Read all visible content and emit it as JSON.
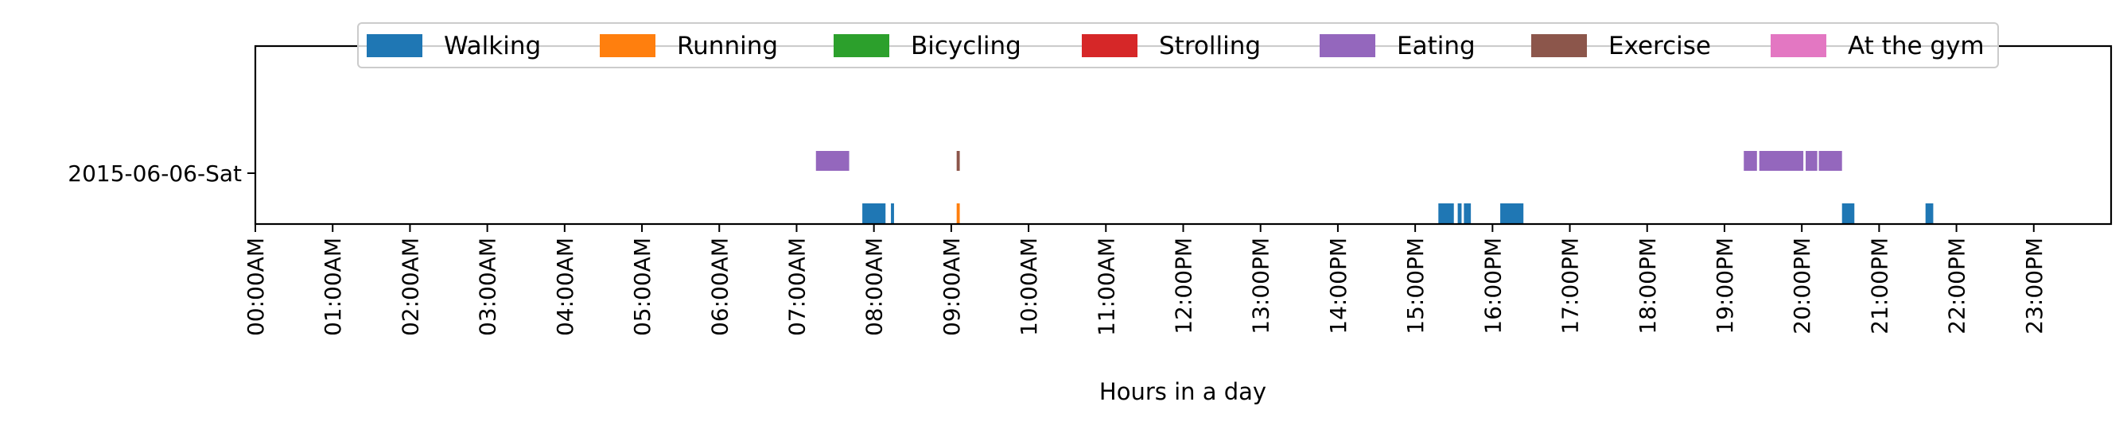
{
  "chart_data": {
    "type": "timeline",
    "title": "",
    "xlabel": "Hours in a day",
    "ylabel": "",
    "xlim": [
      0,
      24
    ],
    "x_unit": "hours",
    "x_tick_labels": [
      "00:00AM",
      "01:00AM",
      "02:00AM",
      "03:00AM",
      "04:00AM",
      "05:00AM",
      "06:00AM",
      "07:00AM",
      "08:00AM",
      "09:00AM",
      "10:00AM",
      "11:00AM",
      "12:00PM",
      "13:00PM",
      "14:00PM",
      "15:00PM",
      "16:00PM",
      "17:00PM",
      "18:00PM",
      "19:00PM",
      "20:00PM",
      "21:00PM",
      "22:00PM",
      "23:00PM"
    ],
    "categories": [
      "2015-06-06-Sat"
    ],
    "grid": false,
    "legend_position": "top-center",
    "series": [
      {
        "name": "Walking",
        "color": "#1f77b4",
        "lane": "lower",
        "intervals": [
          [
            7.85,
            8.15
          ],
          [
            8.22,
            8.26
          ],
          [
            15.3,
            15.5
          ],
          [
            15.55,
            15.6
          ],
          [
            15.63,
            15.72
          ],
          [
            16.1,
            16.4
          ],
          [
            20.52,
            20.68
          ],
          [
            21.6,
            21.7
          ]
        ]
      },
      {
        "name": "Running",
        "color": "#ff7f0e",
        "lane": "lower",
        "intervals": [
          [
            9.07,
            9.11
          ]
        ]
      },
      {
        "name": "Bicycling",
        "color": "#2ca02c",
        "lane": "lower",
        "intervals": []
      },
      {
        "name": "Strolling",
        "color": "#d62728",
        "lane": "lower",
        "intervals": []
      },
      {
        "name": "Eating",
        "color": "#9467bd",
        "lane": "upper",
        "intervals": [
          [
            7.25,
            7.68
          ],
          [
            19.25,
            19.42
          ],
          [
            19.45,
            20.02
          ],
          [
            20.05,
            20.2
          ],
          [
            20.22,
            20.52
          ]
        ]
      },
      {
        "name": "Exercise",
        "color": "#8c564b",
        "lane": "upper",
        "intervals": [
          [
            9.07,
            9.11
          ]
        ]
      },
      {
        "name": "At the gym",
        "color": "#e377c2",
        "lane": "upper",
        "intervals": []
      }
    ]
  }
}
